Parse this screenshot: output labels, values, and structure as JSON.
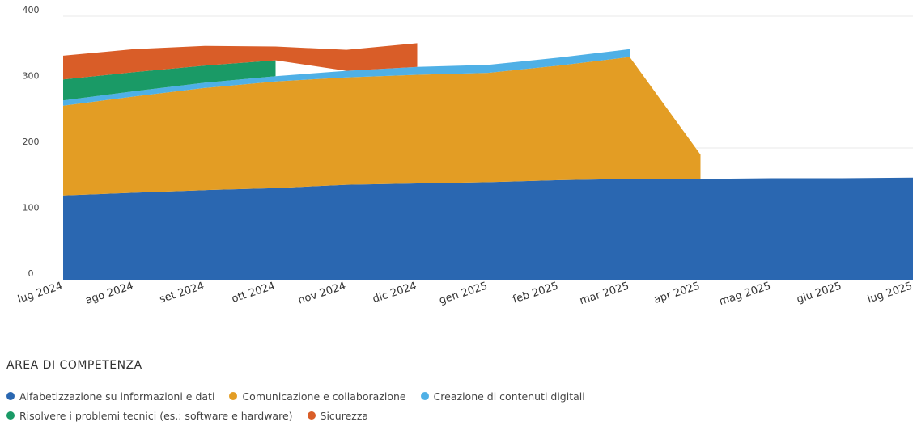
{
  "chart_data": {
    "type": "area",
    "stacked": true,
    "ylim": [
      0,
      400
    ],
    "y_ticks": [
      "0",
      "100",
      "200",
      "300",
      "400"
    ],
    "categories": [
      "lug 2024",
      "ago 2024",
      "set 2024",
      "ott 2024",
      "nov 2024",
      "dic 2024",
      "gen 2025",
      "feb 2025",
      "mar 2025",
      "apr 2025",
      "mag 2025",
      "giu 2025",
      "lug 2025"
    ],
    "grid": true,
    "legend_position": "bottom",
    "legend_title": "AREA DI COMPETENZA",
    "series": [
      {
        "name": "Alfabetizzazione su informazioni e dati",
        "color": "#2a67b1",
        "values": [
          128,
          132,
          136,
          139,
          144,
          146,
          148,
          151,
          153,
          153,
          154,
          154,
          155
        ]
      },
      {
        "name": "Comunicazione e collaborazione",
        "color": "#e39d24",
        "values": [
          136,
          146,
          155,
          162,
          163,
          165,
          166,
          174,
          185,
          37,
          null,
          null,
          null
        ]
      },
      {
        "name": "Creazione di contenuti digitali",
        "color": "#4fb0e6",
        "values": [
          8,
          8,
          8,
          8,
          10,
          12,
          12,
          12,
          12,
          null,
          null,
          null,
          null
        ]
      },
      {
        "name": "Risolvere i problemi tecnici (es.: software e hardware)",
        "color": "#1a9a66",
        "values": [
          32,
          29,
          26,
          24,
          null,
          null,
          null,
          null,
          null,
          null,
          null,
          null,
          null
        ]
      },
      {
        "name": "Sicurezza",
        "color": "#d95d28",
        "values": [
          36,
          35,
          30,
          21,
          32,
          36,
          null,
          null,
          null,
          null,
          null,
          null,
          null
        ]
      }
    ]
  }
}
